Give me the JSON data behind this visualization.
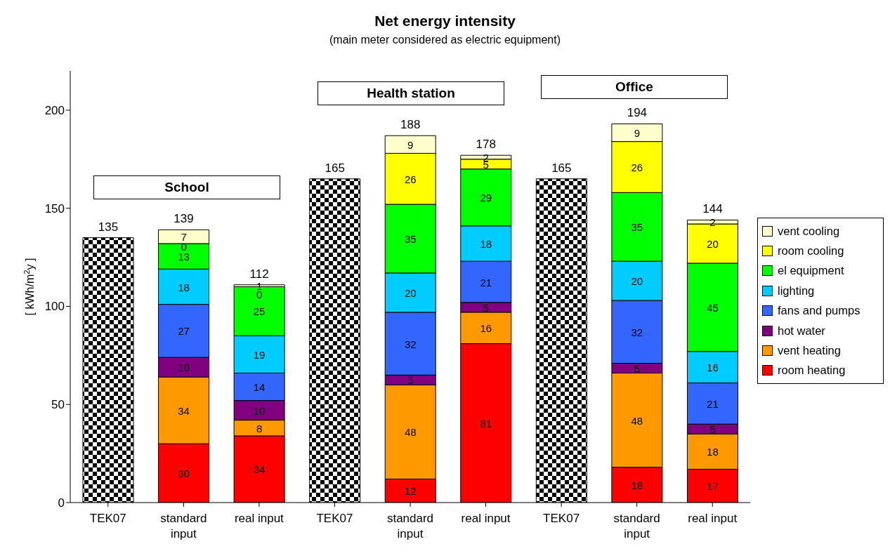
{
  "chart_data": {
    "type": "bar",
    "title": "Net energy intensity",
    "subtitle": "(main meter considered as electric equipment)",
    "ylabel": "[ kWh/m$^{2}$y ]",
    "categories": [
      "TEK07",
      "standard input",
      "real input",
      "TEK07",
      "standard input",
      "real input",
      "TEK07",
      "standard input",
      "real input"
    ],
    "stacked": true,
    "ylim": [
      0,
      220
    ],
    "yticks": [
      0,
      50,
      100,
      150,
      200
    ],
    "legend": "right",
    "annotations": [
      "School",
      "Health station",
      "Office"
    ],
    "totals": [
      "135",
      "139",
      "112",
      "165",
      "188",
      "178",
      "165",
      "194",
      "144"
    ],
    "series": [
      {
        "color": "#000000",
        "values": [
          135,
          null,
          null,
          165,
          null,
          null,
          165,
          null,
          null
        ]
      },
      {
        "name": "room heating",
        "color": "#ff0000",
        "values": [
          null,
          30,
          34,
          null,
          12,
          81,
          null,
          18,
          17
        ],
        "value_labels": [
          null,
          "30",
          "34",
          null,
          "12",
          "81",
          null,
          "18",
          "17"
        ]
      },
      {
        "name": "vent heating",
        "color": "#ff9900",
        "values": [
          null,
          34,
          8,
          null,
          48,
          16,
          null,
          48,
          18
        ],
        "value_labels": [
          null,
          "34",
          "8",
          null,
          "48",
          "16",
          null,
          "48",
          "18"
        ]
      },
      {
        "name": "hot water",
        "color": "#800080",
        "values": [
          null,
          10,
          10,
          null,
          5,
          5,
          null,
          5,
          5
        ],
        "value_labels": [
          null,
          "10",
          "10",
          null,
          "5",
          "5",
          null,
          "5",
          "5"
        ]
      },
      {
        "name": "fans and pumps",
        "color": "#3366ff",
        "values": [
          null,
          27,
          14,
          null,
          32,
          21,
          null,
          32,
          21
        ],
        "value_labels": [
          null,
          "27",
          "14",
          null,
          "32",
          "21",
          null,
          "32",
          "21"
        ]
      },
      {
        "name": "lighting",
        "color": "#00ccff",
        "values": [
          null,
          18,
          19,
          null,
          20,
          18,
          null,
          20,
          16
        ],
        "value_labels": [
          null,
          "18",
          "19",
          null,
          "20",
          "18",
          null,
          "20",
          "16"
        ]
      },
      {
        "name": "el equipment",
        "color": "#00ff00",
        "values": [
          null,
          13,
          25,
          null,
          35,
          29,
          null,
          35,
          45
        ],
        "value_labels": [
          null,
          "13",
          "25",
          null,
          "35",
          "29",
          null,
          "35",
          "45"
        ]
      },
      {
        "name": "room cooling",
        "color": "#ffff00",
        "values": [
          null,
          0,
          0,
          null,
          26,
          5,
          null,
          26,
          20
        ],
        "value_labels": [
          null,
          "0",
          "0",
          null,
          "26",
          "5",
          null,
          "26",
          "20"
        ]
      },
      {
        "name": "vent cooling",
        "color": "#ffffcc",
        "values": [
          null,
          7,
          1,
          null,
          9,
          2,
          null,
          9,
          2
        ],
        "value_labels": [
          null,
          "7",
          "1",
          null,
          "9",
          "2",
          null,
          "9",
          "2"
        ]
      }
    ]
  }
}
